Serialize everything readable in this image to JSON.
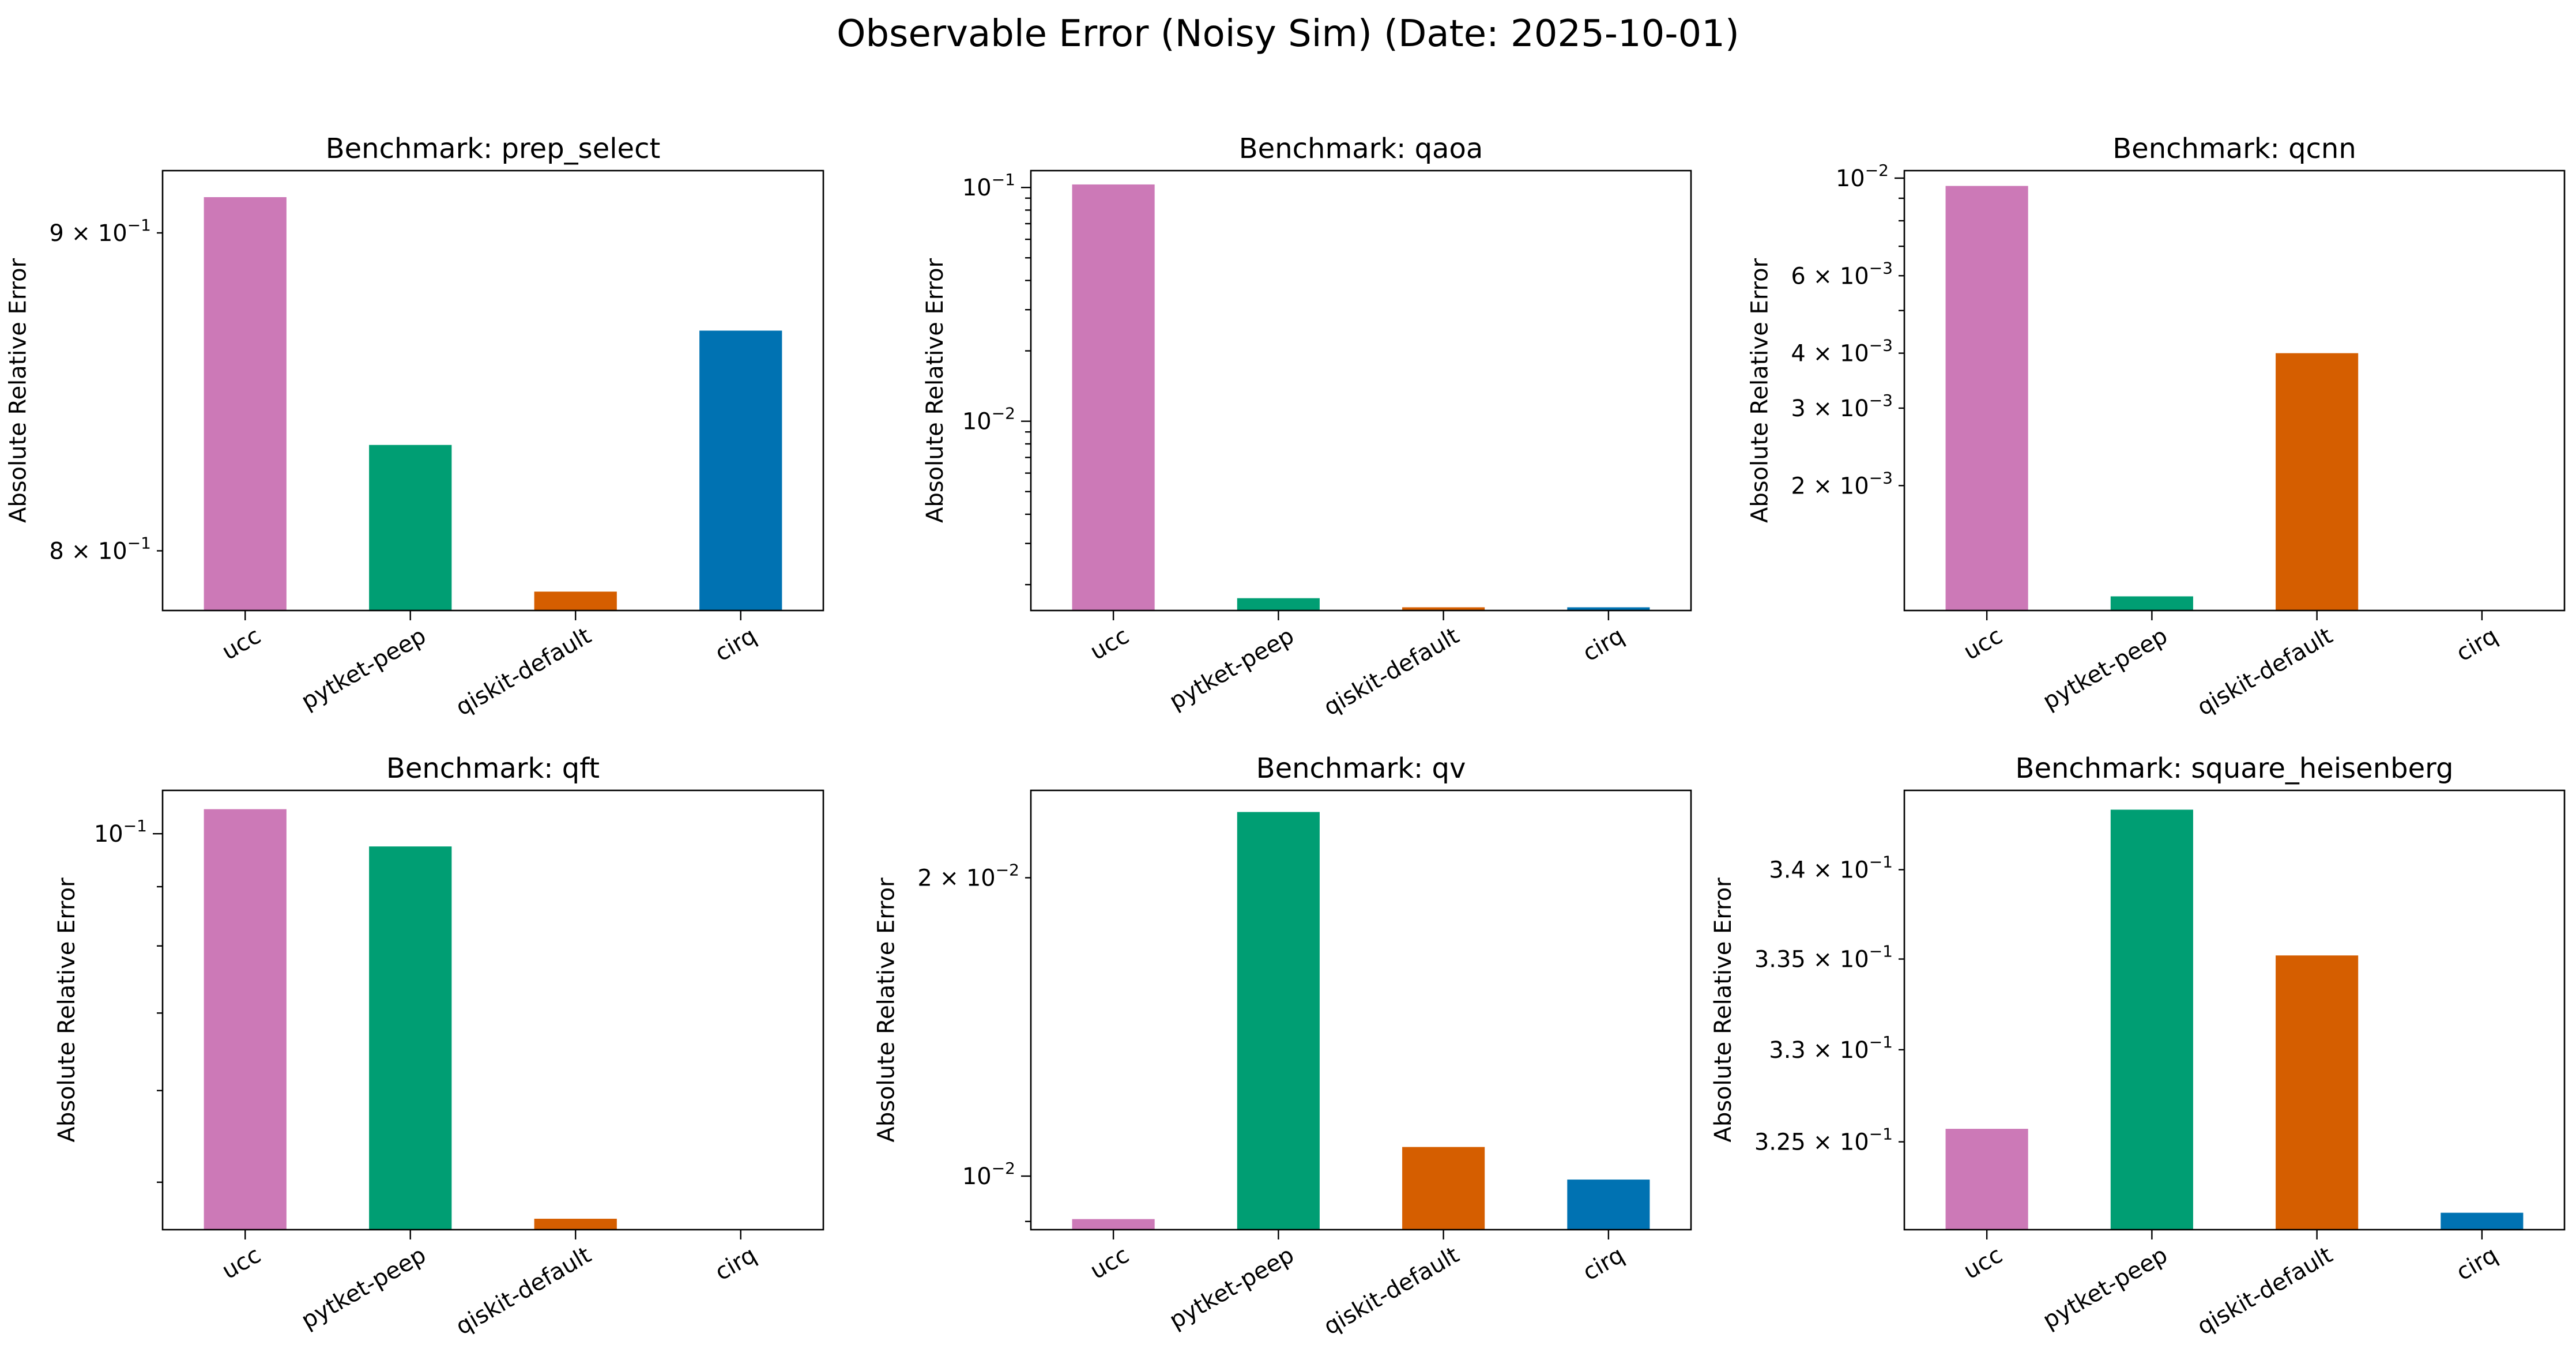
{
  "title": "Observable Error (Noisy Sim) (Date: 2025-10-01)",
  "ylabel": "Absolute Relative Error",
  "categories": [
    "ucc",
    "pytket-peep",
    "qiskit-default",
    "cirq"
  ],
  "colors": {
    "ucc": "#CC79B7",
    "pytket-peep": "#009E73",
    "qiskit-default": "#D55E00",
    "cirq": "#0072B2"
  },
  "chart_data": [
    {
      "type": "bar",
      "scale": "log",
      "title": "Benchmark: prep_select",
      "categories": [
        "ucc",
        "pytket-peep",
        "qiskit-default",
        "cirq"
      ],
      "values": [
        0.912,
        0.832,
        0.788,
        0.868
      ],
      "ylim": [
        0.7825,
        0.921
      ],
      "major_ticks": [],
      "minor_ticks": [
        0.8,
        0.9
      ],
      "tick_labels": {
        "0.8": [
          "8 × 10",
          "−1"
        ],
        "0.9": [
          "9 × 10",
          "−1"
        ]
      }
    },
    {
      "type": "bar",
      "scale": "log",
      "title": "Benchmark: qaoa",
      "categories": [
        "ucc",
        "pytket-peep",
        "qiskit-default",
        "cirq"
      ],
      "values": [
        0.103,
        0.00175,
        0.0016,
        0.0016
      ],
      "ylim": [
        0.00155,
        0.118
      ],
      "major_ticks": [
        0.01,
        0.1
      ],
      "minor_ticks": [
        0.002,
        0.003,
        0.004,
        0.005,
        0.006,
        0.007,
        0.008,
        0.009,
        0.02,
        0.03,
        0.04,
        0.05,
        0.06,
        0.07,
        0.08,
        0.09
      ],
      "tick_labels": {
        "0.01": [
          "10",
          "−2"
        ],
        "0.1": [
          "10",
          "−1"
        ]
      }
    },
    {
      "type": "bar",
      "scale": "log",
      "title": "Benchmark: qcnn",
      "categories": [
        "ucc",
        "pytket-peep",
        "qiskit-default",
        "cirq"
      ],
      "values": [
        0.0096,
        0.00112,
        0.004,
        0.00104
      ],
      "ylim": [
        0.00104,
        0.0104
      ],
      "major_ticks": [
        0.01
      ],
      "minor_ticks": [
        0.002,
        0.003,
        0.004,
        0.005,
        0.006,
        0.007,
        0.008,
        0.009
      ],
      "tick_labels": {
        "0.01": [
          "10",
          "−2"
        ],
        "0.002": [
          "2 × 10",
          "−3"
        ],
        "0.003": [
          "3 × 10",
          "−3"
        ],
        "0.004": [
          "4 × 10",
          "−3"
        ],
        "0.006": [
          "6 × 10",
          "−3"
        ]
      }
    },
    {
      "type": "bar",
      "scale": "log",
      "title": "Benchmark: qft",
      "categories": [
        "ucc",
        "pytket-peep",
        "qiskit-default",
        "cirq"
      ],
      "values": [
        0.105,
        0.0975,
        0.0465,
        0.0455
      ],
      "ylim": [
        0.0455,
        0.109
      ],
      "major_ticks": [
        0.1
      ],
      "minor_ticks": [
        0.05,
        0.06,
        0.07,
        0.08,
        0.09
      ],
      "tick_labels": {
        "0.1": [
          "10",
          "−1"
        ]
      }
    },
    {
      "type": "bar",
      "scale": "log",
      "title": "Benchmark: qv",
      "categories": [
        "ucc",
        "pytket-peep",
        "qiskit-default",
        "cirq"
      ],
      "values": [
        0.00905,
        0.0233,
        0.0107,
        0.00992
      ],
      "ylim": [
        0.00883,
        0.0245
      ],
      "major_ticks": [
        0.01
      ],
      "minor_ticks": [
        0.009,
        0.02
      ],
      "tick_labels": {
        "0.01": [
          "10",
          "−2"
        ],
        "0.02": [
          "2 × 10",
          "−2"
        ]
      }
    },
    {
      "type": "bar",
      "scale": "log",
      "title": "Benchmark: square_heisenberg",
      "categories": [
        "ucc",
        "pytket-peep",
        "qiskit-default",
        "cirq"
      ],
      "values": [
        0.3257,
        0.3434,
        0.3352,
        0.3212
      ],
      "ylim": [
        0.3203,
        0.3445
      ],
      "major_ticks": [],
      "minor_ticks": [
        0.325,
        0.33,
        0.335,
        0.34
      ],
      "tick_labels": {
        "0.325": [
          "3.25 × 10",
          "−1"
        ],
        "0.33": [
          "3.3 × 10",
          "−1"
        ],
        "0.335": [
          "3.35 × 10",
          "−1"
        ],
        "0.34": [
          "3.4 × 10",
          "−1"
        ]
      }
    }
  ]
}
